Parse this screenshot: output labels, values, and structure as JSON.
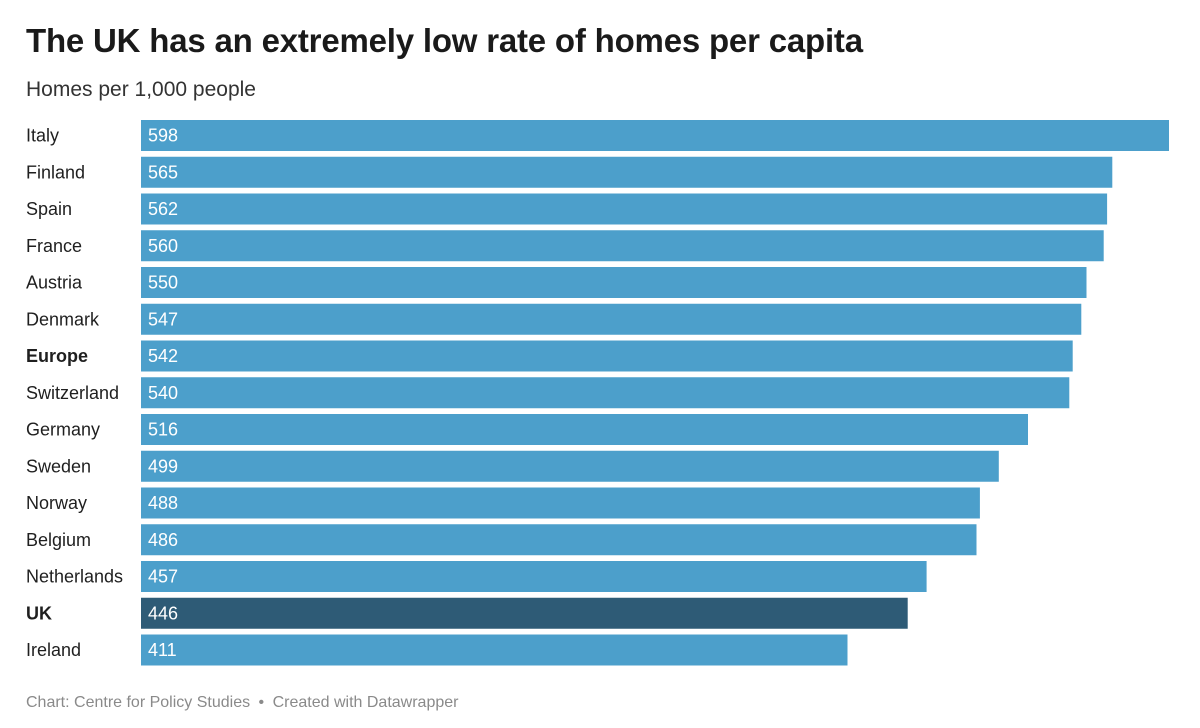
{
  "title": "The UK has an extremely low rate of homes per capita",
  "subtitle": "Homes per 1,000 people",
  "footer": {
    "source": "Chart: Centre for Policy Studies",
    "separator": "•",
    "credit": "Created with Datawrapper"
  },
  "colors": {
    "bar": "#4c9fcb",
    "highlight": "#2e5b76",
    "bar_label": "#ffffff",
    "category_label": "#1f1f1f"
  },
  "chart_data": {
    "type": "bar",
    "orientation": "horizontal",
    "title": "The UK has an extremely low rate of homes per capita",
    "subtitle": "Homes per 1,000 people",
    "categories": [
      "Italy",
      "Finland",
      "Spain",
      "France",
      "Austria",
      "Denmark",
      "Europe",
      "Switzerland",
      "Germany",
      "Sweden",
      "Norway",
      "Belgium",
      "Netherlands",
      "UK",
      "Ireland"
    ],
    "values": [
      598,
      565,
      562,
      560,
      550,
      547,
      542,
      540,
      516,
      499,
      488,
      486,
      457,
      446,
      411
    ],
    "bold_categories": [
      "Europe",
      "UK"
    ],
    "highlighted_categories": [
      "UK"
    ],
    "xlim": [
      0,
      598
    ],
    "grid": false,
    "value_labels": "inside-left"
  }
}
